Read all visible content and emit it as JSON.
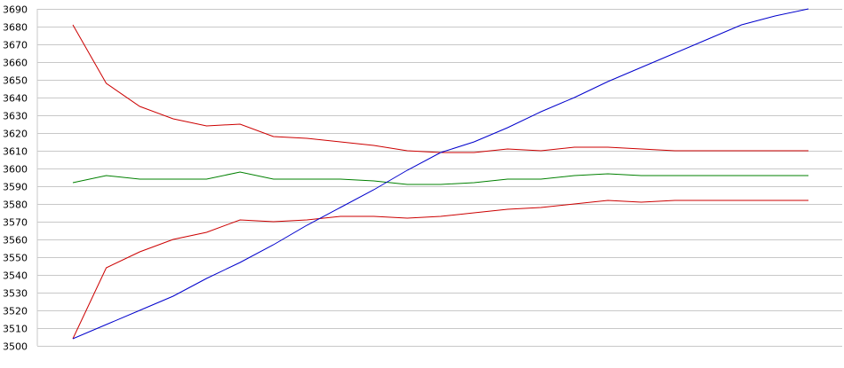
{
  "chart_data": {
    "type": "line",
    "title": "",
    "xlabel": "",
    "ylabel": "",
    "ylim": [
      3500,
      3690
    ],
    "yticks": [
      3500,
      3510,
      3520,
      3530,
      3540,
      3550,
      3560,
      3570,
      3580,
      3590,
      3600,
      3610,
      3620,
      3630,
      3640,
      3650,
      3660,
      3670,
      3680,
      3690
    ],
    "grid": true,
    "legend": "none",
    "x": [
      1,
      2,
      3,
      4,
      5,
      6,
      7,
      8,
      9,
      10,
      11,
      12,
      13,
      14,
      15,
      16,
      17,
      18,
      19,
      20,
      21,
      22,
      23
    ],
    "series": [
      {
        "color": "#cc0000",
        "values": [
          3681,
          3648,
          3635,
          3628,
          3624,
          3625,
          3618,
          3617,
          3615,
          3613,
          3610,
          3609,
          3609,
          3611,
          3610,
          3612,
          3612,
          3611,
          3610,
          3610,
          3610,
          3610,
          3610
        ]
      },
      {
        "color": "#cc0000",
        "values": [
          3504,
          3544,
          3553,
          3560,
          3564,
          3571,
          3570,
          3571,
          3573,
          3573,
          3572,
          3573,
          3575,
          3577,
          3578,
          3580,
          3582,
          3581,
          3582,
          3582,
          3582,
          3582,
          3582
        ]
      },
      {
        "color": "#008000",
        "values": [
          3592,
          3596,
          3594,
          3594,
          3594,
          3598,
          3594,
          3594,
          3594,
          3593,
          3591,
          3591,
          3592,
          3594,
          3594,
          3596,
          3597,
          3596,
          3596,
          3596,
          3596,
          3596,
          3596
        ]
      },
      {
        "color": "#0000cc",
        "values": [
          3504,
          3512,
          3520,
          3528,
          3538,
          3547,
          3557,
          3568,
          3578,
          3588,
          3599,
          3609,
          3615,
          3623,
          3632,
          3640,
          3649,
          3657,
          3665,
          3673,
          3681,
          3686,
          3690
        ]
      }
    ]
  }
}
